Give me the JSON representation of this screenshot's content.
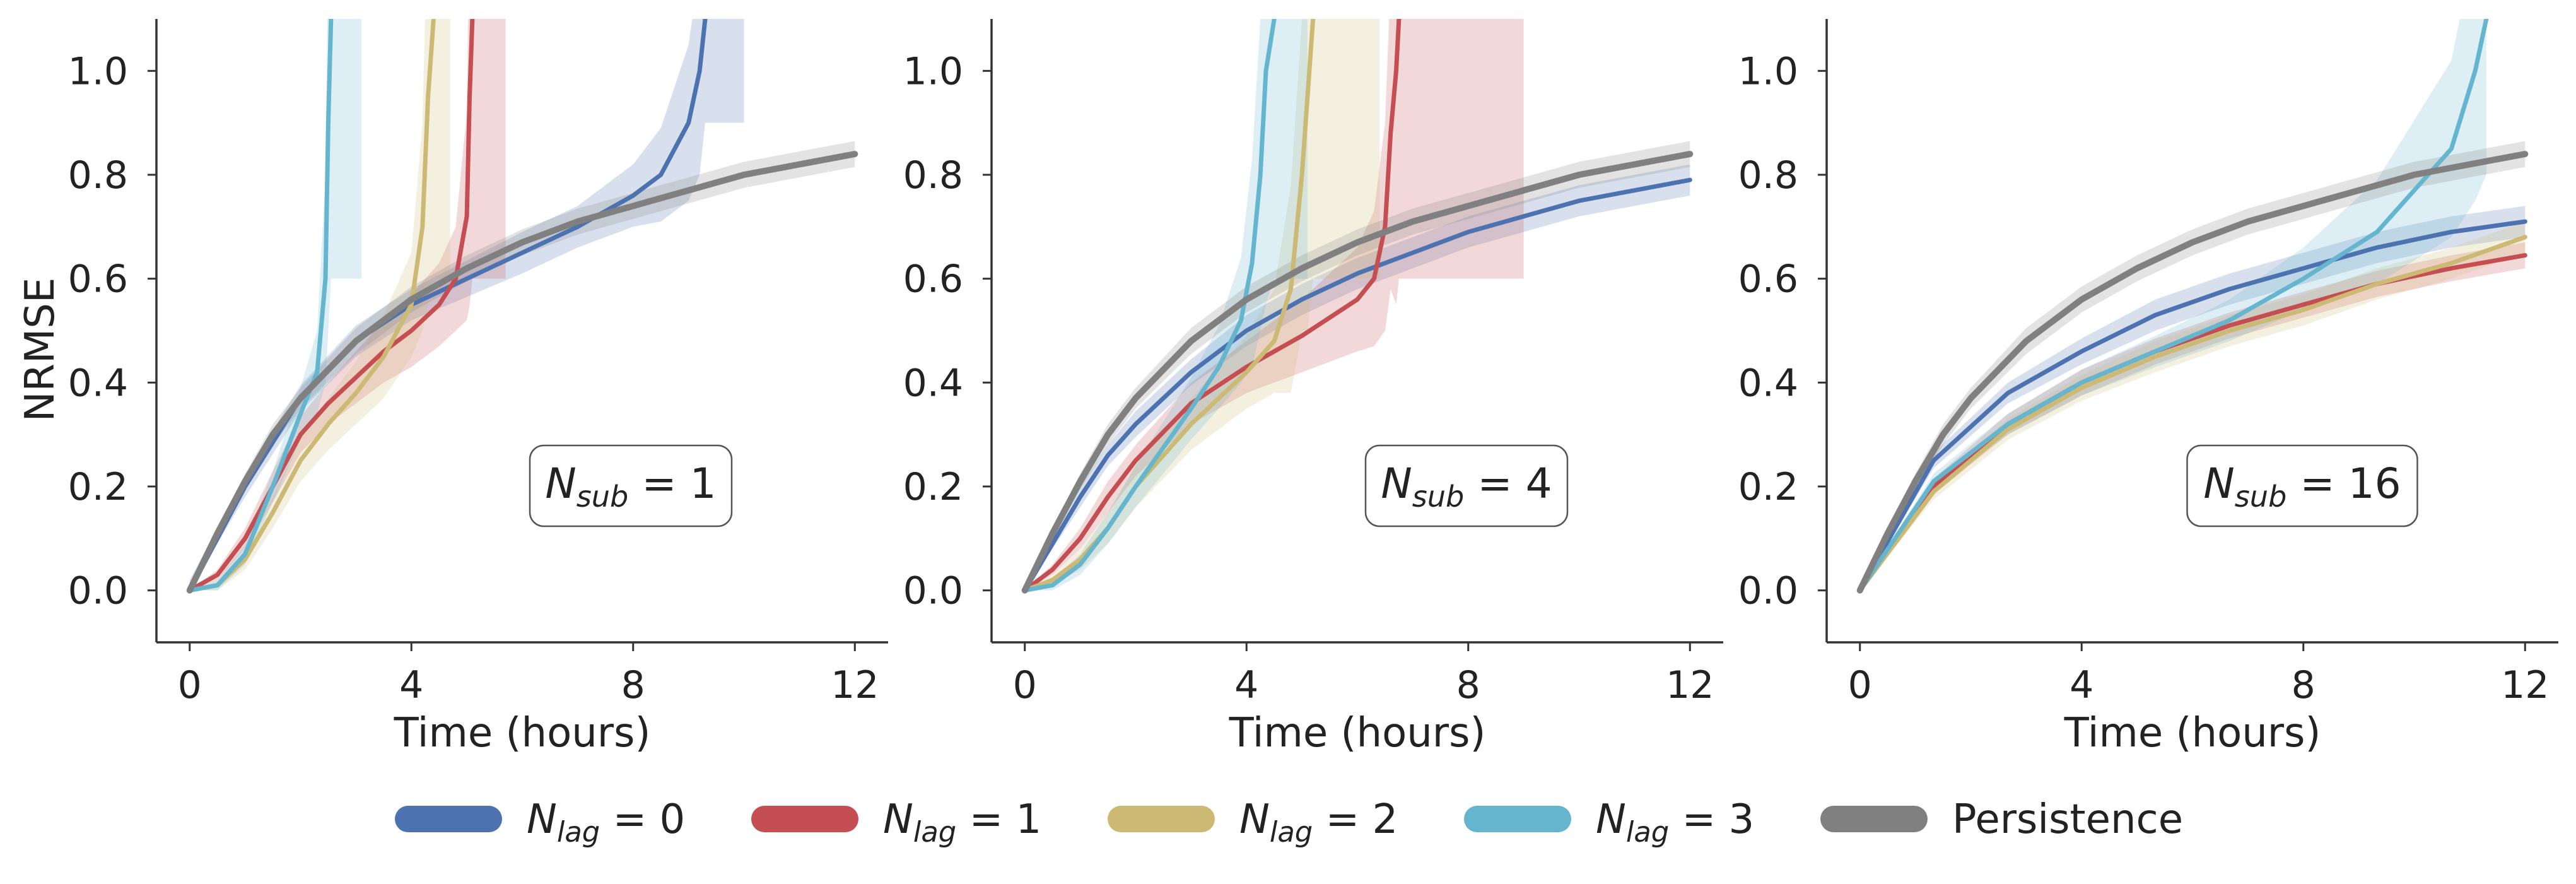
{
  "figure": {
    "ylabel": "NRMSE",
    "xlabel": "Time (hours)",
    "x_ticks": [
      "0",
      "4",
      "8",
      "12"
    ],
    "y_ticks": [
      "0.0",
      "0.2",
      "0.4",
      "0.6",
      "0.8",
      "1.0"
    ]
  },
  "legend": [
    {
      "name": "N_lag = 0",
      "sym": "N",
      "sub": "lag",
      "rest": " = 0",
      "color": "#4c72b0"
    },
    {
      "name": "N_lag = 1",
      "sym": "N",
      "sub": "lag",
      "rest": " = 1",
      "color": "#c44e52"
    },
    {
      "name": "N_lag = 2",
      "sym": "N",
      "sub": "lag",
      "rest": " = 2",
      "color": "#ccb974"
    },
    {
      "name": "N_lag = 3",
      "sym": "N",
      "sub": "lag",
      "rest": " = 3",
      "color": "#64b5cd"
    },
    {
      "name": "Persistence",
      "sym": "",
      "sub": "",
      "rest": "Persistence",
      "color": "#808080"
    }
  ],
  "chart_data": [
    {
      "type": "line",
      "annotation": {
        "sym": "N",
        "sub": "sub",
        "rest": " = 1"
      },
      "xlabel": "Time (hours)",
      "ylabel": "NRMSE",
      "xlim": [
        -0.6,
        12.6
      ],
      "ylim": [
        -0.1,
        1.1
      ],
      "grid": false,
      "series": [
        {
          "name": "N_lag = 0",
          "color": "#4c72b0",
          "x": [
            0,
            1,
            2,
            3,
            4,
            5,
            6,
            7,
            8,
            8.5,
            9,
            9.2,
            9.3
          ],
          "y": [
            0,
            0.2,
            0.37,
            0.48,
            0.55,
            0.6,
            0.65,
            0.7,
            0.76,
            0.8,
            0.9,
            1.0,
            1.1
          ],
          "band": [
            0.02,
            0.02,
            0.025,
            0.03,
            0.03,
            0.035,
            0.04,
            0.04,
            0.06,
            0.09,
            0.15,
            0.2,
            0.2
          ],
          "band_end_x": 10
        },
        {
          "name": "N_lag = 1",
          "color": "#c44e52",
          "x": [
            0,
            0.5,
            1,
            1.5,
            2,
            2.5,
            3,
            3.5,
            4,
            4.5,
            4.8,
            5,
            5.05,
            5.1
          ],
          "y": [
            0,
            0.03,
            0.1,
            0.2,
            0.3,
            0.36,
            0.41,
            0.46,
            0.5,
            0.55,
            0.6,
            0.72,
            0.95,
            1.1
          ],
          "band": [
            0,
            0.01,
            0.02,
            0.03,
            0.035,
            0.04,
            0.05,
            0.06,
            0.07,
            0.08,
            0.1,
            0.2,
            0.4,
            0.5
          ],
          "band_end_x": 5.7
        },
        {
          "name": "N_lag = 2",
          "color": "#ccb974",
          "x": [
            0,
            0.5,
            1,
            1.5,
            2,
            2.5,
            3,
            3.5,
            4,
            4.2,
            4.3,
            4.4
          ],
          "y": [
            0,
            0.01,
            0.06,
            0.15,
            0.25,
            0.32,
            0.38,
            0.45,
            0.55,
            0.7,
            0.95,
            1.1
          ],
          "band": [
            0,
            0.01,
            0.02,
            0.03,
            0.04,
            0.05,
            0.06,
            0.08,
            0.1,
            0.2,
            0.4,
            0.5
          ],
          "band_end_x": 4.7
        },
        {
          "name": "N_lag = 3",
          "color": "#64b5cd",
          "x": [
            0,
            0.5,
            1,
            1.5,
            2,
            2.3,
            2.45,
            2.5,
            2.55
          ],
          "y": [
            0,
            0.01,
            0.07,
            0.2,
            0.34,
            0.42,
            0.6,
            0.9,
            1.1
          ],
          "band": [
            0,
            0.01,
            0.02,
            0.03,
            0.05,
            0.08,
            0.2,
            0.4,
            0.5
          ],
          "band_end_x": 3.1
        },
        {
          "name": "Persistence",
          "color": "#808080",
          "x": [
            0,
            0.5,
            1,
            1.5,
            2,
            3,
            4,
            5,
            6,
            7,
            8,
            9,
            10,
            11,
            12
          ],
          "y": [
            0,
            0.11,
            0.21,
            0.3,
            0.37,
            0.48,
            0.56,
            0.62,
            0.67,
            0.71,
            0.74,
            0.77,
            0.8,
            0.82,
            0.84
          ],
          "band": [
            0,
            0.01,
            0.015,
            0.02,
            0.02,
            0.025,
            0.025,
            0.025,
            0.025,
            0.025,
            0.025,
            0.025,
            0.025,
            0.025,
            0.025
          ]
        }
      ]
    },
    {
      "type": "line",
      "annotation": {
        "sym": "N",
        "sub": "sub",
        "rest": " = 4"
      },
      "xlabel": "Time (hours)",
      "ylabel": "",
      "xlim": [
        -0.6,
        12.6
      ],
      "ylim": [
        -0.1,
        1.1
      ],
      "grid": false,
      "series": [
        {
          "name": "N_lag = 0",
          "color": "#4c72b0",
          "x": [
            0,
            0.5,
            1,
            1.5,
            2,
            3,
            4,
            5,
            6,
            7,
            8,
            9,
            10,
            11,
            12
          ],
          "y": [
            0,
            0.09,
            0.18,
            0.26,
            0.32,
            0.42,
            0.5,
            0.56,
            0.61,
            0.65,
            0.69,
            0.72,
            0.75,
            0.77,
            0.79
          ],
          "band": [
            0,
            0.01,
            0.02,
            0.02,
            0.025,
            0.025,
            0.03,
            0.03,
            0.03,
            0.03,
            0.03,
            0.03,
            0.03,
            0.03,
            0.03
          ]
        },
        {
          "name": "N_lag = 1",
          "color": "#c44e52",
          "x": [
            0,
            0.5,
            1,
            1.5,
            2,
            3,
            4,
            5,
            6,
            6.3,
            6.5,
            6.6,
            6.7,
            6.75
          ],
          "y": [
            0,
            0.04,
            0.1,
            0.18,
            0.25,
            0.36,
            0.43,
            0.49,
            0.56,
            0.6,
            0.7,
            0.88,
            1.0,
            1.1
          ],
          "band": [
            0,
            0.01,
            0.02,
            0.03,
            0.03,
            0.04,
            0.05,
            0.07,
            0.1,
            0.13,
            0.2,
            0.3,
            0.45,
            0.5
          ],
          "band_end_x": 9
        },
        {
          "name": "N_lag = 2",
          "color": "#ccb974",
          "x": [
            0,
            0.5,
            1,
            1.5,
            2,
            3,
            4,
            4.5,
            4.8,
            5,
            5.1,
            5.2
          ],
          "y": [
            0,
            0.02,
            0.06,
            0.12,
            0.2,
            0.32,
            0.42,
            0.48,
            0.58,
            0.8,
            0.95,
            1.1
          ],
          "band": [
            0,
            0.01,
            0.02,
            0.03,
            0.04,
            0.05,
            0.07,
            0.1,
            0.2,
            0.3,
            0.45,
            0.5
          ],
          "band_end_x": 6.4
        },
        {
          "name": "N_lag = 3",
          "color": "#64b5cd",
          "x": [
            0,
            0.5,
            1,
            1.5,
            2,
            3,
            3.5,
            3.9,
            4.1,
            4.25,
            4.35,
            4.5
          ],
          "y": [
            0,
            0.01,
            0.05,
            0.12,
            0.2,
            0.35,
            0.43,
            0.52,
            0.63,
            0.8,
            1.0,
            1.1
          ],
          "band": [
            0,
            0.01,
            0.02,
            0.03,
            0.04,
            0.06,
            0.08,
            0.12,
            0.2,
            0.3,
            0.45,
            0.5
          ],
          "band_end_x": 5.1
        },
        {
          "name": "Persistence",
          "color": "#808080",
          "x": [
            0,
            0.5,
            1,
            1.5,
            2,
            3,
            4,
            5,
            6,
            7,
            8,
            9,
            10,
            11,
            12
          ],
          "y": [
            0,
            0.11,
            0.21,
            0.3,
            0.37,
            0.48,
            0.56,
            0.62,
            0.67,
            0.71,
            0.74,
            0.77,
            0.8,
            0.82,
            0.84
          ],
          "band": [
            0,
            0.01,
            0.015,
            0.02,
            0.02,
            0.025,
            0.025,
            0.025,
            0.025,
            0.025,
            0.025,
            0.025,
            0.025,
            0.025,
            0.025
          ]
        }
      ]
    },
    {
      "type": "line",
      "annotation": {
        "sym": "N",
        "sub": "sub",
        "rest": " = 16"
      },
      "xlabel": "Time (hours)",
      "ylabel": "",
      "xlim": [
        -0.6,
        12.6
      ],
      "ylim": [
        -0.1,
        1.1
      ],
      "grid": false,
      "series": [
        {
          "name": "N_lag = 0",
          "color": "#4c72b0",
          "x": [
            0,
            1.33,
            2.67,
            4,
            5.33,
            6.67,
            8,
            9.33,
            10.67,
            12
          ],
          "y": [
            0,
            0.25,
            0.38,
            0.46,
            0.53,
            0.58,
            0.62,
            0.66,
            0.69,
            0.71
          ],
          "band": [
            0,
            0.015,
            0.02,
            0.025,
            0.03,
            0.03,
            0.03,
            0.03,
            0.03,
            0.03
          ]
        },
        {
          "name": "N_lag = 1",
          "color": "#c44e52",
          "x": [
            0,
            1.33,
            2.67,
            4,
            5.33,
            6.67,
            8,
            9.33,
            10.67,
            12
          ],
          "y": [
            0,
            0.2,
            0.32,
            0.4,
            0.46,
            0.51,
            0.55,
            0.59,
            0.62,
            0.645
          ],
          "band": [
            0,
            0.015,
            0.02,
            0.025,
            0.025,
            0.025,
            0.025,
            0.025,
            0.025,
            0.025
          ]
        },
        {
          "name": "N_lag = 2",
          "color": "#ccb974",
          "x": [
            0,
            1.33,
            2.67,
            4,
            5.33,
            6.67,
            8,
            9.33,
            10.67,
            12
          ],
          "y": [
            0,
            0.19,
            0.31,
            0.39,
            0.45,
            0.5,
            0.54,
            0.59,
            0.63,
            0.68
          ],
          "band": [
            0,
            0.015,
            0.02,
            0.025,
            0.03,
            0.03,
            0.03,
            0.03,
            0.03,
            0.03
          ]
        },
        {
          "name": "N_lag = 3",
          "color": "#64b5cd",
          "x": [
            0,
            1.33,
            2.67,
            4,
            5.33,
            6.67,
            8,
            9.33,
            10.67,
            11.1,
            11.3
          ],
          "y": [
            0,
            0.21,
            0.32,
            0.4,
            0.46,
            0.52,
            0.6,
            0.69,
            0.85,
            1.0,
            1.1
          ],
          "band": [
            0,
            0.015,
            0.02,
            0.025,
            0.03,
            0.04,
            0.06,
            0.1,
            0.17,
            0.25,
            0.3
          ]
        },
        {
          "name": "Persistence",
          "color": "#808080",
          "x": [
            0,
            0.5,
            1,
            1.5,
            2,
            3,
            4,
            5,
            6,
            7,
            8,
            9,
            10,
            11,
            12
          ],
          "y": [
            0,
            0.11,
            0.21,
            0.3,
            0.37,
            0.48,
            0.56,
            0.62,
            0.67,
            0.71,
            0.74,
            0.77,
            0.8,
            0.82,
            0.84
          ],
          "band": [
            0,
            0.01,
            0.015,
            0.02,
            0.02,
            0.025,
            0.025,
            0.025,
            0.025,
            0.025,
            0.025,
            0.025,
            0.025,
            0.025,
            0.025
          ]
        }
      ]
    }
  ]
}
